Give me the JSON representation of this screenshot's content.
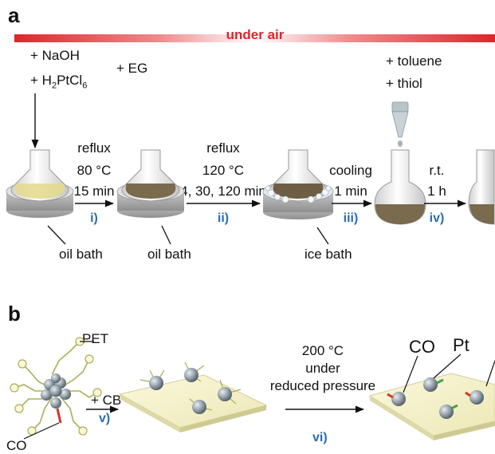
{
  "panel_a": {
    "letter": "a",
    "banner": "under air",
    "reagents_left": {
      "naoh": "+ NaOH",
      "h2ptcl6_prefix": "+ H",
      "h2ptcl6_sub1": "2",
      "h2ptcl6_mid": "PtCl",
      "h2ptcl6_sub2": "6",
      "eg": "+ EG"
    },
    "reagents_right": {
      "toluene": "+ toluene",
      "thiol": "+ thiol"
    },
    "steps": [
      {
        "line1": "reflux",
        "line2": "80 °C",
        "line3": "15 min",
        "num": "i)"
      },
      {
        "line1": "reflux",
        "line2": "120 °C",
        "line3": "4, 30, 120 min",
        "num": "ii)"
      },
      {
        "line1": "cooling",
        "line2": "1 min",
        "num": "iii)"
      },
      {
        "line1": "r.t.",
        "line2": "1 h",
        "num": "iv)"
      }
    ],
    "baths": {
      "oil1": "oil bath",
      "oil2": "oil bath",
      "ice": "ice bath"
    }
  },
  "panel_b": {
    "letter": "b",
    "pet": "PET",
    "co_left": "CO",
    "plus_cb": "+ CB",
    "step_v": "v)",
    "cond1": "200 °C",
    "cond2": "under",
    "cond3": "reduced pressure",
    "step_vi": "vi)",
    "co_right": "CO",
    "pt": "Pt"
  },
  "colors": {
    "banner_red": "#e0242b",
    "step_blue": "#2a6db5",
    "support": "#f2f0c8"
  }
}
